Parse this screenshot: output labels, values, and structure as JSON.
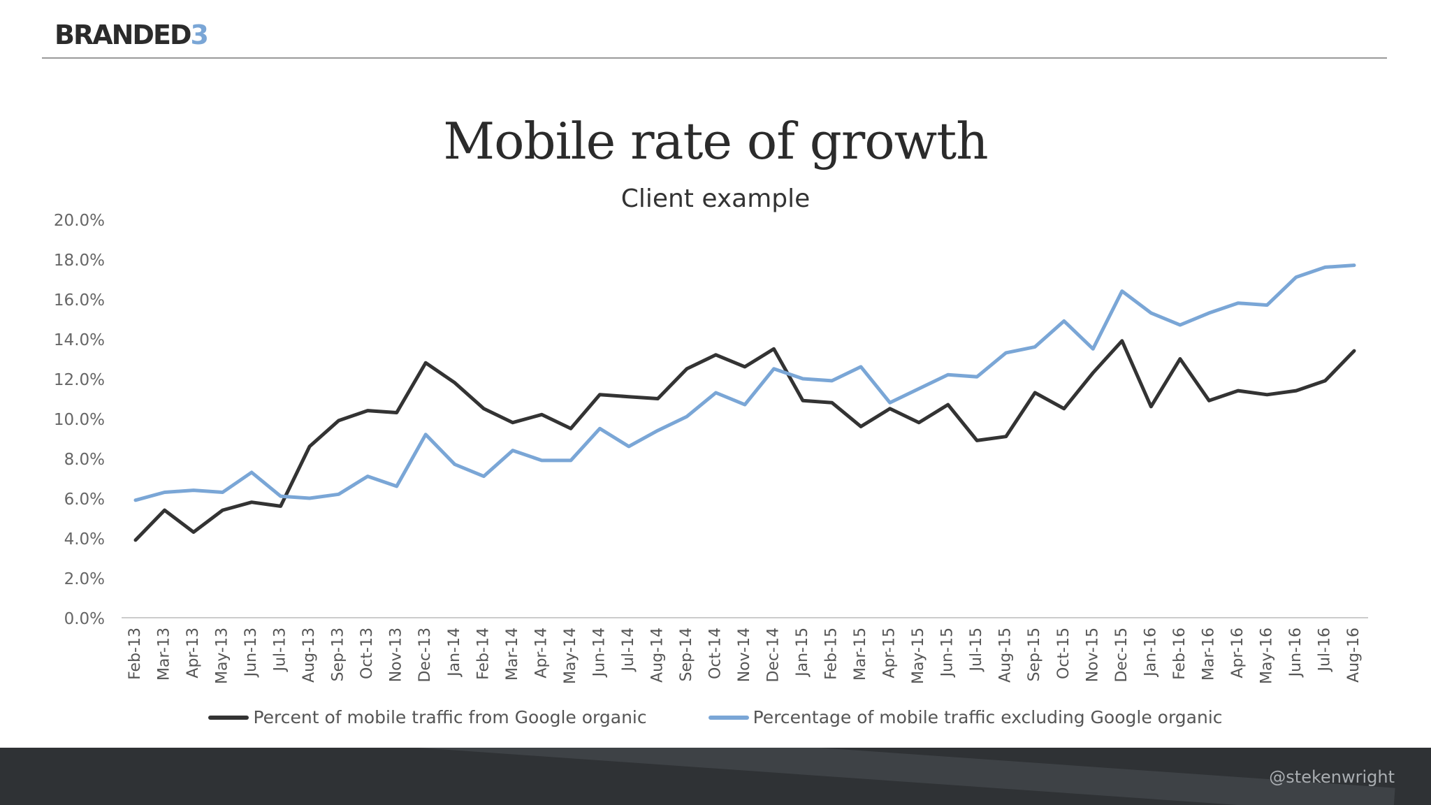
{
  "header": {
    "logo_text": "BRANDED",
    "logo_accent": "3"
  },
  "footer": {
    "handle": "@stekenwright"
  },
  "colors": {
    "series_dark": "#333333",
    "series_light": "#7aa6d6",
    "axis": "#cccccc",
    "tick_text": "#666666"
  },
  "chart_data": {
    "type": "line",
    "title": "Mobile rate of growth",
    "subtitle": "Client example",
    "ylim": [
      0,
      20
    ],
    "y_ticks": [
      "0.0%",
      "2.0%",
      "4.0%",
      "6.0%",
      "8.0%",
      "10.0%",
      "12.0%",
      "14.0%",
      "16.0%",
      "18.0%",
      "20.0%"
    ],
    "grid": false,
    "legend_position": "bottom",
    "categories": [
      "Feb-13",
      "Mar-13",
      "Apr-13",
      "May-13",
      "Jun-13",
      "Jul-13",
      "Aug-13",
      "Sep-13",
      "Oct-13",
      "Nov-13",
      "Dec-13",
      "Jan-14",
      "Feb-14",
      "Mar-14",
      "Apr-14",
      "May-14",
      "Jun-14",
      "Jul-14",
      "Aug-14",
      "Sep-14",
      "Oct-14",
      "Nov-14",
      "Dec-14",
      "Jan-15",
      "Feb-15",
      "Mar-15",
      "Apr-15",
      "May-15",
      "Jun-15",
      "Jul-15",
      "Aug-15",
      "Sep-15",
      "Oct-15",
      "Nov-15",
      "Dec-15",
      "Jan-16",
      "Feb-16",
      "Mar-16",
      "Apr-16",
      "May-16",
      "Jun-16",
      "Jul-16",
      "Aug-16"
    ],
    "series": [
      {
        "name": "Percent of mobile traffic from Google organic",
        "color": "#333333",
        "values": [
          3.9,
          5.4,
          4.3,
          5.4,
          5.8,
          5.6,
          8.6,
          9.9,
          10.4,
          10.3,
          12.8,
          11.8,
          10.5,
          9.8,
          10.2,
          9.5,
          11.2,
          11.1,
          11.0,
          12.5,
          13.2,
          12.6,
          13.5,
          10.9,
          10.8,
          9.6,
          10.5,
          9.8,
          10.7,
          8.9,
          9.1,
          11.3,
          10.5,
          12.3,
          13.9,
          10.6,
          13.0,
          10.9,
          11.4,
          11.2,
          11.4,
          11.9,
          13.4
        ]
      },
      {
        "name": "Percentage of mobile traffic excluding Google organic",
        "color": "#7aa6d6",
        "values": [
          5.9,
          6.3,
          6.4,
          6.3,
          7.3,
          6.1,
          6.0,
          6.2,
          7.1,
          6.6,
          9.2,
          7.7,
          7.1,
          8.4,
          7.9,
          7.9,
          9.5,
          8.6,
          9.4,
          10.1,
          11.3,
          10.7,
          12.5,
          12.0,
          11.9,
          12.6,
          10.8,
          11.5,
          12.2,
          12.1,
          13.3,
          13.6,
          14.9,
          13.5,
          16.4,
          15.3,
          14.7,
          15.3,
          15.8,
          15.7,
          17.1,
          17.6,
          17.7
        ]
      }
    ]
  }
}
